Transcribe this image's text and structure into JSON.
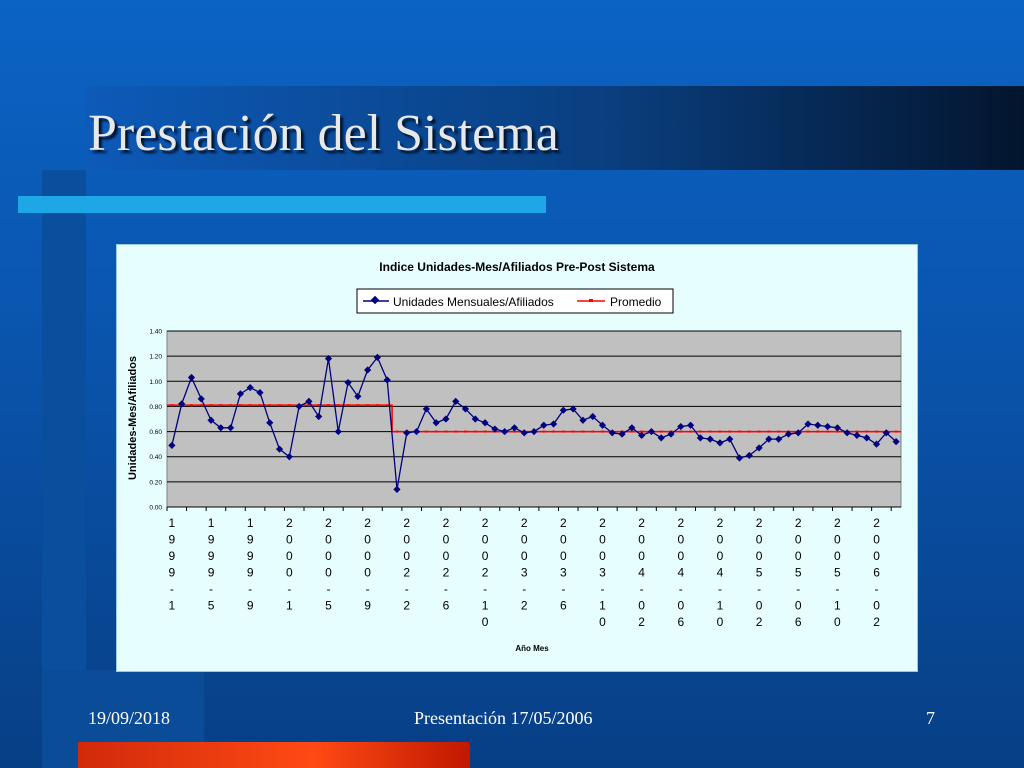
{
  "slide": {
    "title": "Prestación del Sistema",
    "footer_date": "19/09/2018",
    "footer_center": "Presentación 17/05/2006",
    "page_number": "7"
  },
  "colors": {
    "series_main": "#000080",
    "series_avg": "#ff0000",
    "plot_bg": "#c0c0c0",
    "chart_bg": "#e6fffe"
  },
  "chart_data": {
    "type": "line",
    "title": "Indice Unidades-Mes/Afiliados Pre-Post Sistema",
    "xlabel": "Año Mes",
    "ylabel": "Unidades-Mes/Afiliados",
    "ylim": [
      0,
      1.4
    ],
    "yticks": [
      "0.00",
      "0.20",
      "0.40",
      "0.60",
      "0.80",
      "1.00",
      "1.20",
      "1.40"
    ],
    "grid": true,
    "legend_position": "top",
    "x_tick_labels": [
      "1999-1",
      "1999-5",
      "1999-9",
      "2000-1",
      "2000-5",
      "2000-9",
      "2002-2",
      "2002-6",
      "2002-10",
      "2003-2",
      "2003-6",
      "2003-10",
      "2004-02",
      "2004-06",
      "2004-10",
      "2005-02",
      "2005-06",
      "2005-10",
      "2006-02"
    ],
    "series": [
      {
        "name": "Unidades Mensuales/Afiliados",
        "marker": "diamond",
        "values": [
          0.49,
          0.82,
          1.03,
          0.86,
          0.69,
          0.63,
          0.63,
          0.9,
          0.95,
          0.91,
          0.67,
          0.46,
          0.4,
          0.8,
          0.84,
          0.72,
          1.18,
          0.6,
          0.99,
          0.88,
          1.09,
          1.19,
          1.01,
          0.14,
          0.59,
          0.6,
          0.78,
          0.67,
          0.7,
          0.84,
          0.78,
          0.7,
          0.67,
          0.62,
          0.6,
          0.63,
          0.59,
          0.6,
          0.65,
          0.66,
          0.77,
          0.78,
          0.69,
          0.72,
          0.65,
          0.59,
          0.58,
          0.63,
          0.57,
          0.6,
          0.55,
          0.58,
          0.64,
          0.65,
          0.55,
          0.54,
          0.51,
          0.54,
          0.39,
          0.41,
          0.47,
          0.54,
          0.54,
          0.58,
          0.59,
          0.66,
          0.65,
          0.64,
          0.63,
          0.59,
          0.57,
          0.55,
          0.5,
          0.59,
          0.52
        ]
      },
      {
        "name": "Promedio",
        "marker": "dash",
        "values": [
          0.81,
          0.81,
          0.81,
          0.81,
          0.81,
          0.81,
          0.81,
          0.81,
          0.81,
          0.81,
          0.81,
          0.81,
          0.81,
          0.81,
          0.81,
          0.81,
          0.81,
          0.81,
          0.81,
          0.81,
          0.81,
          0.81,
          0.81,
          0.6,
          0.6,
          0.6,
          0.6,
          0.6,
          0.6,
          0.6,
          0.6,
          0.6,
          0.6,
          0.6,
          0.6,
          0.6,
          0.6,
          0.6,
          0.6,
          0.6,
          0.6,
          0.6,
          0.6,
          0.6,
          0.6,
          0.6,
          0.6,
          0.6,
          0.6,
          0.6,
          0.6,
          0.6,
          0.6,
          0.6,
          0.6,
          0.6,
          0.6,
          0.6,
          0.6,
          0.6,
          0.6,
          0.6,
          0.6,
          0.6,
          0.6,
          0.6,
          0.6,
          0.6,
          0.6,
          0.6,
          0.6,
          0.6,
          0.6,
          0.6,
          0.6
        ]
      }
    ]
  }
}
